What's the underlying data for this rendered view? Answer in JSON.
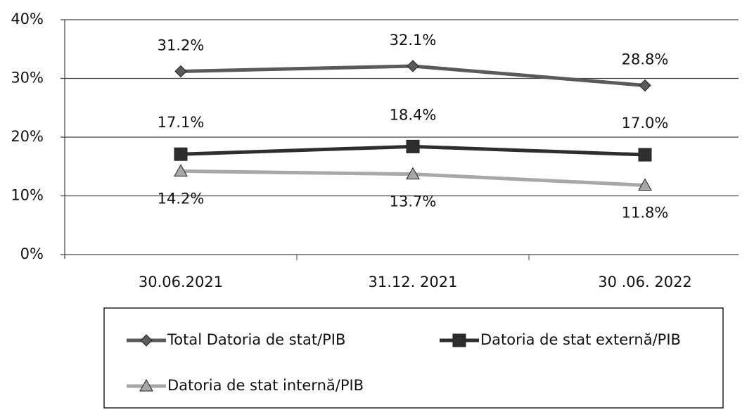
{
  "chart_data": {
    "type": "line",
    "categories": [
      "30.06.2021",
      "31.12. 2021",
      "30 .06. 2022"
    ],
    "series": [
      {
        "name": "Total Datoria de stat/PIB",
        "color": "#5a5a5a",
        "marker": "diamond",
        "values": [
          31.2,
          32.1,
          28.8
        ],
        "value_labels": [
          "31.2%",
          "32.1%",
          "28.8%"
        ]
      },
      {
        "name": "Datoria de stat externă/PIB",
        "color": "#2e2e2e",
        "marker": "square",
        "values": [
          17.1,
          18.4,
          17.0
        ],
        "value_labels": [
          "17.1%",
          "18.4%",
          "17.0%"
        ]
      },
      {
        "name": "Datoria de stat internă/PIB",
        "color": "#a8a8a8",
        "marker": "triangle",
        "values": [
          14.2,
          13.7,
          11.8
        ],
        "value_labels": [
          "14.2%",
          "13.7%",
          "11.8%"
        ]
      }
    ],
    "ylim": [
      0,
      40
    ],
    "yticks": [
      {
        "value": 0,
        "label": "0%"
      },
      {
        "value": 10,
        "label": "10%"
      },
      {
        "value": 20,
        "label": "20%"
      },
      {
        "value": 30,
        "label": "30%"
      },
      {
        "value": 40,
        "label": "40%"
      }
    ],
    "grid": true,
    "legend": "bottom"
  }
}
